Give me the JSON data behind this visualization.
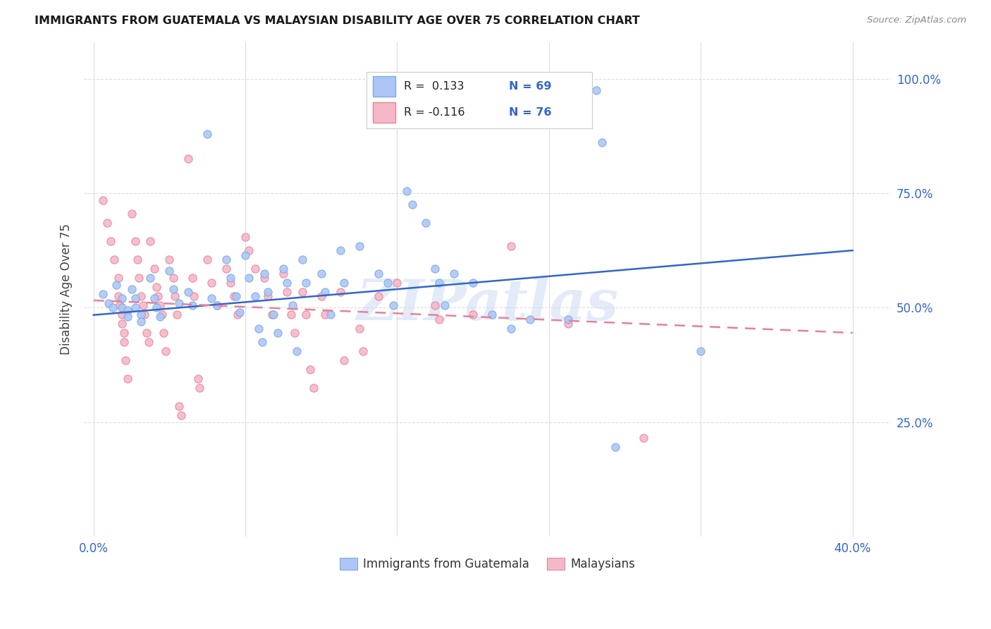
{
  "title": "IMMIGRANTS FROM GUATEMALA VS MALAYSIAN DISABILITY AGE OVER 75 CORRELATION CHART",
  "source": "Source: ZipAtlas.com",
  "ylabel": "Disability Age Over 75",
  "ytick_values": [
    0.0,
    0.25,
    0.5,
    0.75,
    1.0
  ],
  "xtick_values": [
    0.0,
    0.08,
    0.16,
    0.24,
    0.32,
    0.4
  ],
  "xlim": [
    -0.005,
    0.42
  ],
  "ylim": [
    0.05,
    1.08
  ],
  "blue_marker_face": "#aec6f5",
  "blue_marker_edge": "#7aaae8",
  "pink_marker_face": "#f5b8c8",
  "pink_marker_edge": "#e8849a",
  "trend_blue": "#3366cc",
  "trend_pink": "#e88099",
  "watermark": "ZIPatlas",
  "watermark_color": "#c8d8f5",
  "scatter_blue": [
    [
      0.005,
      0.53
    ],
    [
      0.008,
      0.51
    ],
    [
      0.01,
      0.5
    ],
    [
      0.012,
      0.55
    ],
    [
      0.015,
      0.52
    ],
    [
      0.015,
      0.5
    ],
    [
      0.018,
      0.495
    ],
    [
      0.018,
      0.48
    ],
    [
      0.02,
      0.54
    ],
    [
      0.022,
      0.52
    ],
    [
      0.022,
      0.5
    ],
    [
      0.025,
      0.485
    ],
    [
      0.025,
      0.47
    ],
    [
      0.03,
      0.565
    ],
    [
      0.032,
      0.52
    ],
    [
      0.033,
      0.5
    ],
    [
      0.035,
      0.48
    ],
    [
      0.04,
      0.58
    ],
    [
      0.042,
      0.54
    ],
    [
      0.045,
      0.51
    ],
    [
      0.05,
      0.535
    ],
    [
      0.052,
      0.505
    ],
    [
      0.06,
      0.88
    ],
    [
      0.062,
      0.52
    ],
    [
      0.065,
      0.505
    ],
    [
      0.07,
      0.605
    ],
    [
      0.072,
      0.565
    ],
    [
      0.075,
      0.525
    ],
    [
      0.077,
      0.49
    ],
    [
      0.08,
      0.615
    ],
    [
      0.082,
      0.565
    ],
    [
      0.085,
      0.525
    ],
    [
      0.087,
      0.455
    ],
    [
      0.089,
      0.425
    ],
    [
      0.09,
      0.575
    ],
    [
      0.092,
      0.535
    ],
    [
      0.095,
      0.485
    ],
    [
      0.097,
      0.445
    ],
    [
      0.1,
      0.585
    ],
    [
      0.102,
      0.555
    ],
    [
      0.105,
      0.505
    ],
    [
      0.107,
      0.405
    ],
    [
      0.11,
      0.605
    ],
    [
      0.112,
      0.555
    ],
    [
      0.12,
      0.575
    ],
    [
      0.122,
      0.535
    ],
    [
      0.125,
      0.485
    ],
    [
      0.13,
      0.625
    ],
    [
      0.132,
      0.555
    ],
    [
      0.14,
      0.635
    ],
    [
      0.15,
      0.575
    ],
    [
      0.155,
      0.555
    ],
    [
      0.158,
      0.505
    ],
    [
      0.165,
      0.755
    ],
    [
      0.168,
      0.725
    ],
    [
      0.175,
      0.685
    ],
    [
      0.18,
      0.585
    ],
    [
      0.182,
      0.555
    ],
    [
      0.185,
      0.505
    ],
    [
      0.19,
      0.575
    ],
    [
      0.2,
      0.555
    ],
    [
      0.21,
      0.485
    ],
    [
      0.22,
      0.455
    ],
    [
      0.23,
      0.475
    ],
    [
      0.25,
      0.475
    ],
    [
      0.265,
      0.975
    ],
    [
      0.268,
      0.86
    ],
    [
      0.275,
      0.195
    ],
    [
      0.32,
      0.405
    ]
  ],
  "scatter_pink": [
    [
      0.005,
      0.735
    ],
    [
      0.007,
      0.685
    ],
    [
      0.009,
      0.645
    ],
    [
      0.011,
      0.605
    ],
    [
      0.013,
      0.565
    ],
    [
      0.013,
      0.525
    ],
    [
      0.014,
      0.505
    ],
    [
      0.015,
      0.485
    ],
    [
      0.015,
      0.465
    ],
    [
      0.016,
      0.445
    ],
    [
      0.016,
      0.425
    ],
    [
      0.017,
      0.385
    ],
    [
      0.018,
      0.345
    ],
    [
      0.02,
      0.705
    ],
    [
      0.022,
      0.645
    ],
    [
      0.023,
      0.605
    ],
    [
      0.024,
      0.565
    ],
    [
      0.025,
      0.525
    ],
    [
      0.026,
      0.505
    ],
    [
      0.027,
      0.485
    ],
    [
      0.028,
      0.445
    ],
    [
      0.029,
      0.425
    ],
    [
      0.03,
      0.645
    ],
    [
      0.032,
      0.585
    ],
    [
      0.033,
      0.545
    ],
    [
      0.034,
      0.525
    ],
    [
      0.035,
      0.505
    ],
    [
      0.036,
      0.485
    ],
    [
      0.037,
      0.445
    ],
    [
      0.038,
      0.405
    ],
    [
      0.04,
      0.605
    ],
    [
      0.042,
      0.565
    ],
    [
      0.043,
      0.525
    ],
    [
      0.044,
      0.485
    ],
    [
      0.045,
      0.285
    ],
    [
      0.046,
      0.265
    ],
    [
      0.05,
      0.825
    ],
    [
      0.052,
      0.565
    ],
    [
      0.053,
      0.525
    ],
    [
      0.055,
      0.345
    ],
    [
      0.056,
      0.325
    ],
    [
      0.06,
      0.605
    ],
    [
      0.062,
      0.555
    ],
    [
      0.065,
      0.505
    ],
    [
      0.07,
      0.585
    ],
    [
      0.072,
      0.555
    ],
    [
      0.074,
      0.525
    ],
    [
      0.076,
      0.485
    ],
    [
      0.08,
      0.655
    ],
    [
      0.082,
      0.625
    ],
    [
      0.085,
      0.585
    ],
    [
      0.09,
      0.565
    ],
    [
      0.092,
      0.525
    ],
    [
      0.094,
      0.485
    ],
    [
      0.1,
      0.575
    ],
    [
      0.102,
      0.535
    ],
    [
      0.104,
      0.485
    ],
    [
      0.106,
      0.445
    ],
    [
      0.11,
      0.535
    ],
    [
      0.112,
      0.485
    ],
    [
      0.114,
      0.365
    ],
    [
      0.116,
      0.325
    ],
    [
      0.12,
      0.525
    ],
    [
      0.122,
      0.485
    ],
    [
      0.13,
      0.535
    ],
    [
      0.132,
      0.385
    ],
    [
      0.14,
      0.455
    ],
    [
      0.142,
      0.405
    ],
    [
      0.15,
      0.525
    ],
    [
      0.16,
      0.555
    ],
    [
      0.18,
      0.505
    ],
    [
      0.182,
      0.475
    ],
    [
      0.2,
      0.485
    ],
    [
      0.22,
      0.635
    ],
    [
      0.25,
      0.465
    ],
    [
      0.29,
      0.215
    ]
  ],
  "blue_trend": [
    0.0,
    0.4,
    0.484,
    0.625
  ],
  "pink_trend": [
    0.0,
    0.4,
    0.516,
    0.445
  ],
  "legend_label_blue": "Immigrants from Guatemala",
  "legend_label_pink": "Malaysians"
}
